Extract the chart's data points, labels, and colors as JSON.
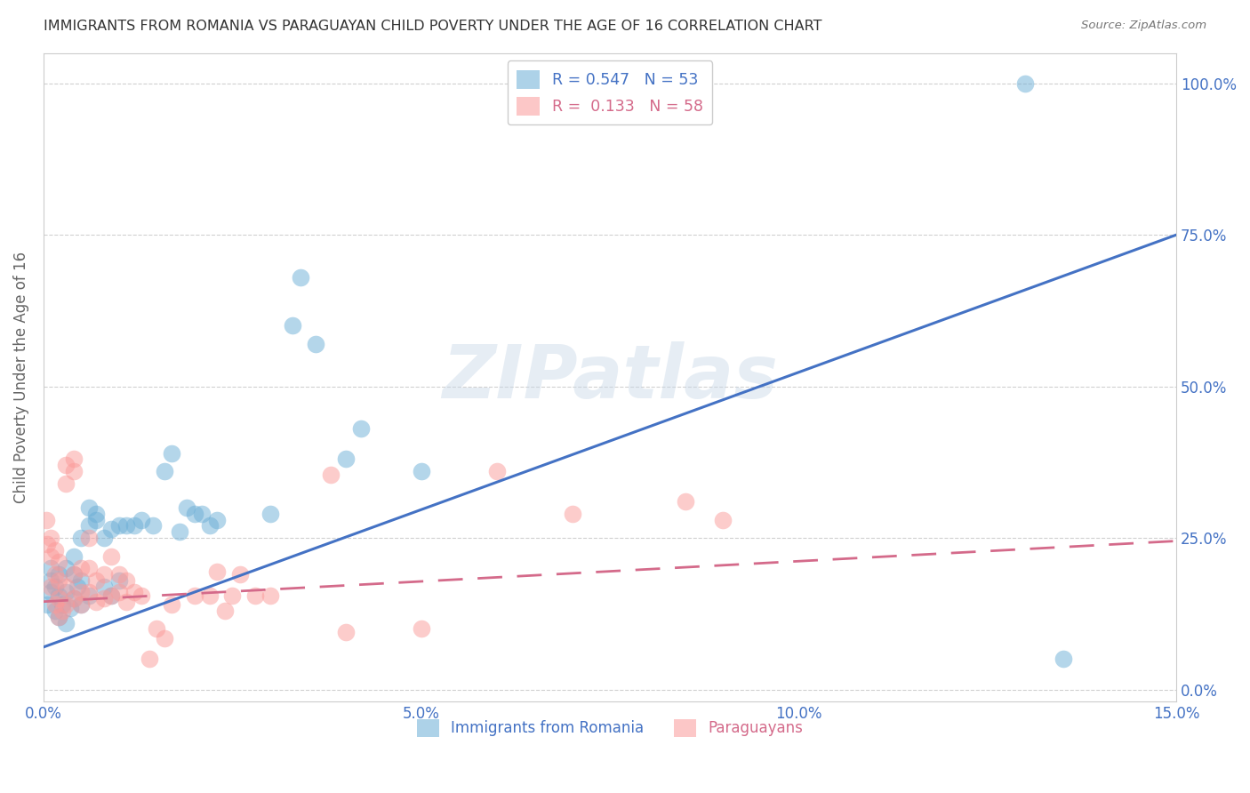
{
  "title": "IMMIGRANTS FROM ROMANIA VS PARAGUAYAN CHILD POVERTY UNDER THE AGE OF 16 CORRELATION CHART",
  "source": "Source: ZipAtlas.com",
  "ylabel": "Child Poverty Under the Age of 16",
  "xlim": [
    0.0,
    0.15
  ],
  "ylim": [
    -0.02,
    1.05
  ],
  "yticks": [
    0.0,
    0.25,
    0.5,
    0.75,
    1.0
  ],
  "ytick_labels": [
    "0.0%",
    "25.0%",
    "50.0%",
    "75.0%",
    "100.0%"
  ],
  "xticks": [
    0.0,
    0.05,
    0.1,
    0.15
  ],
  "xtick_labels": [
    "0.0%",
    "5.0%",
    "10.0%",
    "15.0%"
  ],
  "legend_entries": [
    {
      "label": "R = 0.547   N = 53",
      "color": "#6baed6"
    },
    {
      "label": "R =  0.133   N = 58",
      "color": "#fb9a99"
    }
  ],
  "blue_line": {
    "x0": 0.0,
    "y0": 0.07,
    "x1": 0.15,
    "y1": 0.75
  },
  "pink_line": {
    "x0": 0.0,
    "y0": 0.145,
    "x1": 0.15,
    "y1": 0.245
  },
  "series_blue": {
    "name": "Immigrants from Romania",
    "color": "#6baed6",
    "points": [
      [
        0.0005,
        0.14
      ],
      [
        0.001,
        0.16
      ],
      [
        0.001,
        0.18
      ],
      [
        0.001,
        0.2
      ],
      [
        0.0015,
        0.13
      ],
      [
        0.0015,
        0.17
      ],
      [
        0.002,
        0.12
      ],
      [
        0.002,
        0.155
      ],
      [
        0.002,
        0.19
      ],
      [
        0.0025,
        0.14
      ],
      [
        0.003,
        0.11
      ],
      [
        0.003,
        0.16
      ],
      [
        0.003,
        0.2
      ],
      [
        0.0035,
        0.135
      ],
      [
        0.004,
        0.15
      ],
      [
        0.004,
        0.19
      ],
      [
        0.004,
        0.22
      ],
      [
        0.0045,
        0.17
      ],
      [
        0.005,
        0.14
      ],
      [
        0.005,
        0.18
      ],
      [
        0.005,
        0.25
      ],
      [
        0.006,
        0.155
      ],
      [
        0.006,
        0.27
      ],
      [
        0.006,
        0.3
      ],
      [
        0.007,
        0.28
      ],
      [
        0.007,
        0.29
      ],
      [
        0.008,
        0.17
      ],
      [
        0.008,
        0.25
      ],
      [
        0.009,
        0.155
      ],
      [
        0.009,
        0.265
      ],
      [
        0.01,
        0.18
      ],
      [
        0.01,
        0.27
      ],
      [
        0.011,
        0.27
      ],
      [
        0.012,
        0.27
      ],
      [
        0.013,
        0.28
      ],
      [
        0.0145,
        0.27
      ],
      [
        0.016,
        0.36
      ],
      [
        0.017,
        0.39
      ],
      [
        0.018,
        0.26
      ],
      [
        0.019,
        0.3
      ],
      [
        0.02,
        0.29
      ],
      [
        0.021,
        0.29
      ],
      [
        0.022,
        0.27
      ],
      [
        0.023,
        0.28
      ],
      [
        0.03,
        0.29
      ],
      [
        0.033,
        0.6
      ],
      [
        0.034,
        0.68
      ],
      [
        0.036,
        0.57
      ],
      [
        0.04,
        0.38
      ],
      [
        0.042,
        0.43
      ],
      [
        0.05,
        0.36
      ],
      [
        0.13,
        1.0
      ],
      [
        0.135,
        0.05
      ]
    ]
  },
  "series_pink": {
    "name": "Paraguayans",
    "color": "#fb9a99",
    "points": [
      [
        0.0003,
        0.28
      ],
      [
        0.0005,
        0.24
      ],
      [
        0.001,
        0.17
      ],
      [
        0.001,
        0.22
      ],
      [
        0.001,
        0.25
      ],
      [
        0.0015,
        0.14
      ],
      [
        0.0015,
        0.19
      ],
      [
        0.0015,
        0.23
      ],
      [
        0.002,
        0.12
      ],
      [
        0.002,
        0.15
      ],
      [
        0.002,
        0.18
      ],
      [
        0.002,
        0.21
      ],
      [
        0.0025,
        0.13
      ],
      [
        0.003,
        0.14
      ],
      [
        0.003,
        0.17
      ],
      [
        0.003,
        0.34
      ],
      [
        0.003,
        0.37
      ],
      [
        0.004,
        0.15
      ],
      [
        0.004,
        0.19
      ],
      [
        0.004,
        0.36
      ],
      [
        0.004,
        0.38
      ],
      [
        0.005,
        0.14
      ],
      [
        0.005,
        0.16
      ],
      [
        0.005,
        0.2
      ],
      [
        0.006,
        0.16
      ],
      [
        0.006,
        0.2
      ],
      [
        0.006,
        0.25
      ],
      [
        0.007,
        0.145
      ],
      [
        0.007,
        0.18
      ],
      [
        0.008,
        0.15
      ],
      [
        0.008,
        0.19
      ],
      [
        0.009,
        0.155
      ],
      [
        0.009,
        0.22
      ],
      [
        0.01,
        0.16
      ],
      [
        0.01,
        0.19
      ],
      [
        0.011,
        0.145
      ],
      [
        0.011,
        0.18
      ],
      [
        0.012,
        0.16
      ],
      [
        0.013,
        0.155
      ],
      [
        0.014,
        0.05
      ],
      [
        0.015,
        0.1
      ],
      [
        0.016,
        0.085
      ],
      [
        0.017,
        0.14
      ],
      [
        0.02,
        0.155
      ],
      [
        0.022,
        0.155
      ],
      [
        0.023,
        0.195
      ],
      [
        0.024,
        0.13
      ],
      [
        0.025,
        0.155
      ],
      [
        0.026,
        0.19
      ],
      [
        0.028,
        0.155
      ],
      [
        0.03,
        0.155
      ],
      [
        0.038,
        0.355
      ],
      [
        0.04,
        0.095
      ],
      [
        0.05,
        0.1
      ],
      [
        0.06,
        0.36
      ],
      [
        0.07,
        0.29
      ],
      [
        0.085,
        0.31
      ],
      [
        0.09,
        0.28
      ]
    ]
  },
  "watermark_text": "ZIPatlas",
  "background_color": "#ffffff",
  "grid_color": "#d0d0d0",
  "title_color": "#333333"
}
